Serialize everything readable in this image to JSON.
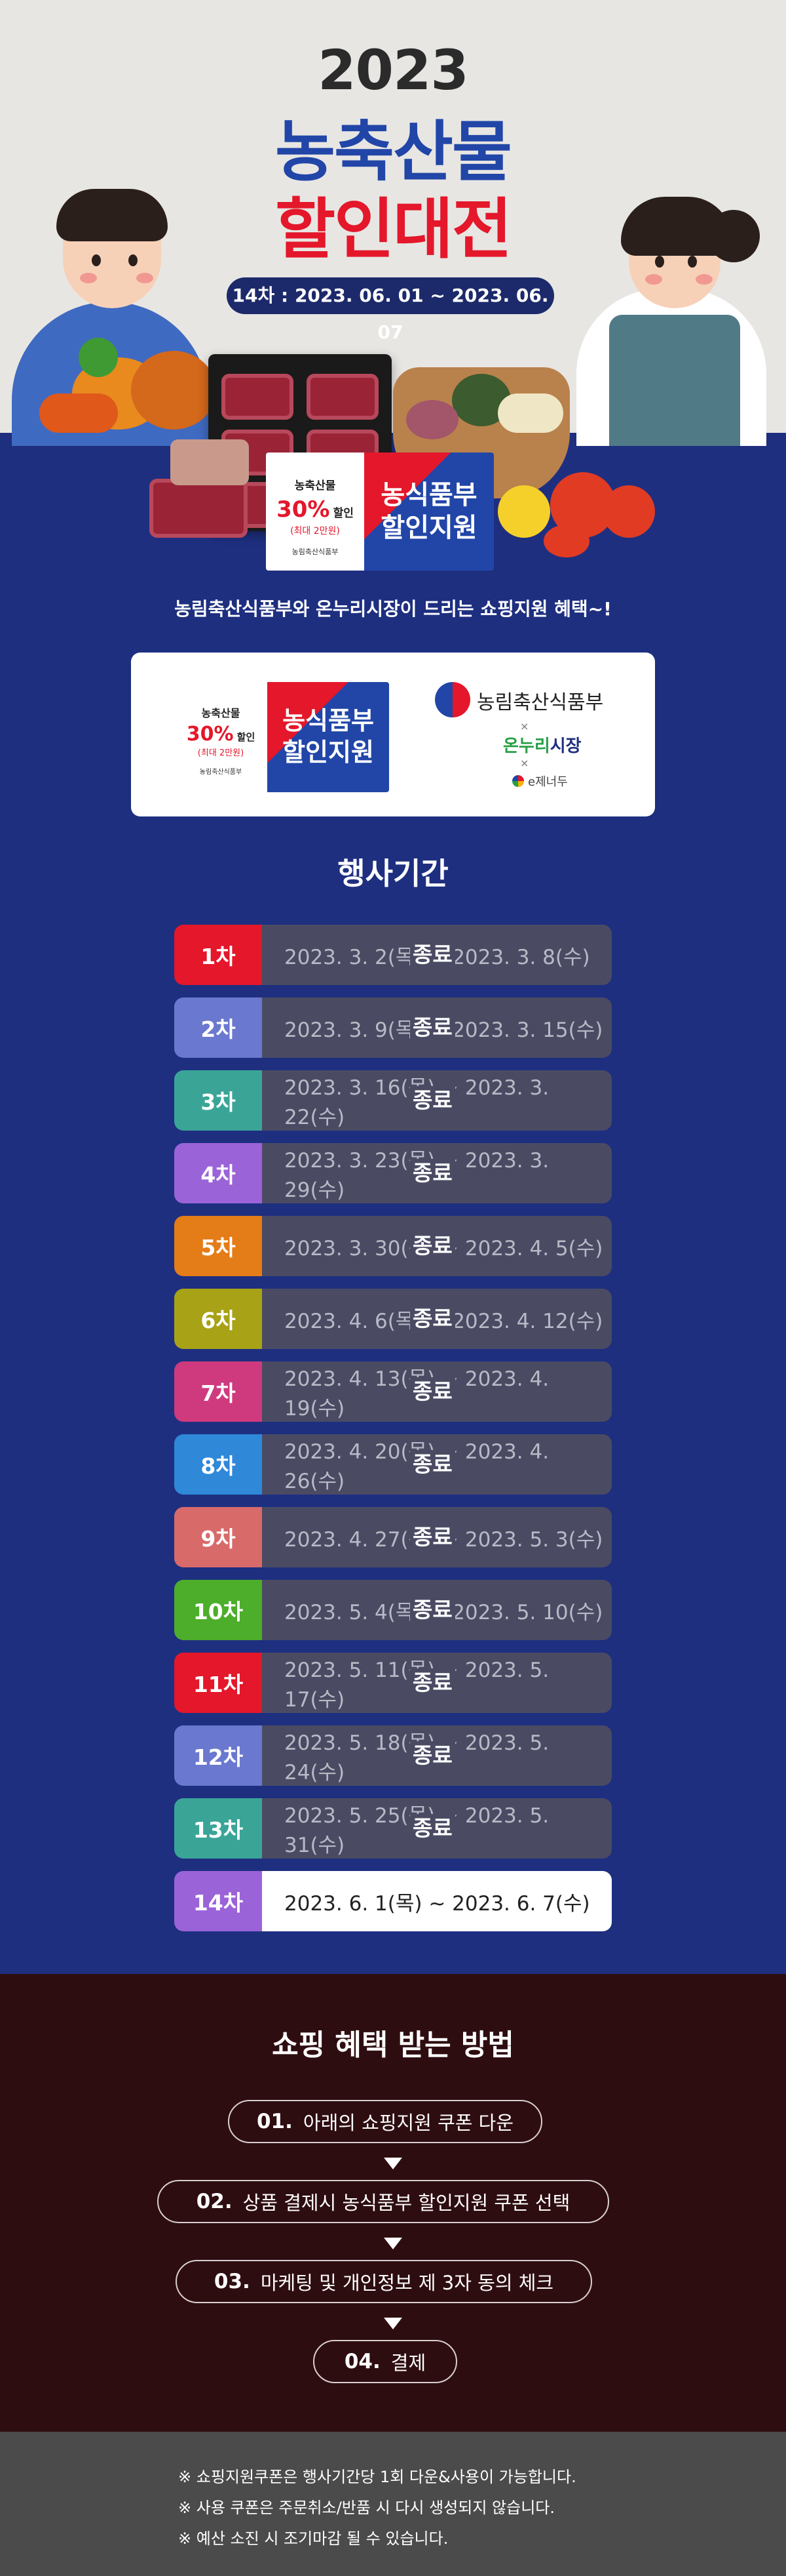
{
  "hero": {
    "year": "2023",
    "title_line1": "농축산물",
    "title_line2": "할인대전",
    "period": "14차 : 2023. 06. 01 ~ 2023. 06. 07"
  },
  "coupon": {
    "category": "농축산물",
    "percent": "30%",
    "percent_suffix": "할인",
    "max": "(최대 2만원)",
    "ministry_small": "농림축산식품부",
    "big_line1": "농식품부",
    "big_line2": "할인지원"
  },
  "tagline": "농림축산식품부와 온누리시장이 드리는 쇼핑지원 혜택~!",
  "partners": {
    "ministry": "농림축산식품부",
    "x": "×",
    "onnuri_green": "온누리",
    "onnuri_blue": "시장",
    "echeon": "e제너두"
  },
  "schedule": {
    "title": "행사기간",
    "ended_label": "종료",
    "rows": [
      {
        "round": "1차",
        "dates": "2023. 3. 2(목) ~ 2023. 3. 8(수)",
        "ended": true,
        "color": "#e4172b"
      },
      {
        "round": "2차",
        "dates": "2023. 3. 9(목) ~ 2023. 3. 15(수)",
        "ended": true,
        "color": "#6a78cf"
      },
      {
        "round": "3차",
        "dates": "2023. 3. 16(목) ~ 2023. 3. 22(수)",
        "ended": true,
        "color": "#3aa597"
      },
      {
        "round": "4차",
        "dates": "2023. 3. 23(목) ~ 2023. 3. 29(수)",
        "ended": true,
        "color": "#9b63d8"
      },
      {
        "round": "5차",
        "dates": "2023. 3. 30(목) ~ 2023. 4. 5(수)",
        "ended": true,
        "color": "#e47c18"
      },
      {
        "round": "6차",
        "dates": "2023. 4. 6(목) ~ 2023. 4. 12(수)",
        "ended": true,
        "color": "#a8a216"
      },
      {
        "round": "7차",
        "dates": "2023. 4. 13(목) ~ 2023. 4. 19(수)",
        "ended": true,
        "color": "#cf3a7e"
      },
      {
        "round": "8차",
        "dates": "2023. 4. 20(목) ~ 2023. 4. 26(수)",
        "ended": true,
        "color": "#2f88d8"
      },
      {
        "round": "9차",
        "dates": "2023. 4. 27(목) ~ 2023. 5. 3(수)",
        "ended": true,
        "color": "#d86a6a"
      },
      {
        "round": "10차",
        "dates": "2023. 5. 4(목) ~ 2023. 5. 10(수)",
        "ended": true,
        "color": "#4cae2a"
      },
      {
        "round": "11차",
        "dates": "2023. 5. 11(목) ~ 2023. 5. 17(수)",
        "ended": true,
        "color": "#e4172b"
      },
      {
        "round": "12차",
        "dates": "2023. 5. 18(목) ~ 2023. 5. 24(수)",
        "ended": true,
        "color": "#6a78cf"
      },
      {
        "round": "13차",
        "dates": "2023. 5. 25(목) ~ 2023. 5. 31(수)",
        "ended": true,
        "color": "#3aa597"
      },
      {
        "round": "14차",
        "dates": "2023. 6. 1(목) ~ 2023. 6. 7(수)",
        "ended": false,
        "color": "#9b63d8"
      }
    ]
  },
  "howto": {
    "title": "쇼핑 혜택 받는 방법",
    "steps": [
      {
        "num": "01.",
        "text": "아래의 쇼핑지원 쿠폰 다운"
      },
      {
        "num": "02.",
        "text": "상품 결제시 농식품부 할인지원 쿠폰 선택"
      },
      {
        "num": "03.",
        "text": "마케팅 및 개인정보 제 3자 동의 체크"
      },
      {
        "num": "04.",
        "text": "결제"
      }
    ]
  },
  "notes": [
    "※ 쇼핑지원쿠폰은 행사기간당 1회 다운&사용이 가능합니다.",
    "※ 사용 쿠폰은 주문취소/반품 시 다시 생성되지 않습니다.",
    "※ 예산 소진 시 조기마감 될 수 있습니다."
  ]
}
